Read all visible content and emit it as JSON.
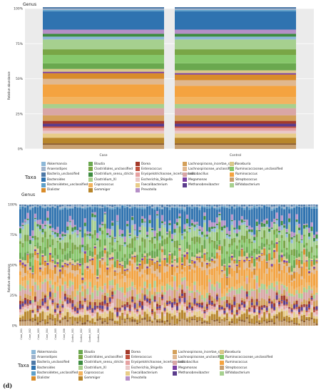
{
  "panel_label": "(d)",
  "chart_data": [
    {
      "type": "bar",
      "stacked": true,
      "title": "Genus",
      "ylabel": "Relative abundance",
      "xlabel": "",
      "ylim": [
        0,
        100
      ],
      "yticks": [
        "0%",
        "25%",
        "50%",
        "75%",
        "100%"
      ],
      "categories": [
        "Case",
        "Control"
      ],
      "series": [
        {
          "name": "Streptococcus",
          "values": [
            3,
            3
          ]
        },
        {
          "name": "Eggerthella",
          "values": [
            1,
            1
          ]
        },
        {
          "name": "Gemmiger",
          "values": [
            4,
            4
          ]
        },
        {
          "name": "Faecalibacterium",
          "values": [
            3,
            3
          ]
        },
        {
          "name": "Escherichia_Shigella",
          "values": [
            2,
            2
          ]
        },
        {
          "name": "Erysipelotrichaceae_incertae_sedis",
          "values": [
            2,
            2
          ]
        },
        {
          "name": "Enterococcus",
          "values": [
            1,
            1
          ]
        },
        {
          "name": "Methanobrevibacter",
          "values": [
            2,
            2
          ]
        },
        {
          "name": "Dorea",
          "values": [
            2,
            2
          ]
        },
        {
          "name": "Lachnospiracea_incertae_sedis",
          "values": [
            4,
            4
          ]
        },
        {
          "name": "Lactobacillus",
          "values": [
            5,
            5
          ]
        },
        {
          "name": "Clostridium_XI",
          "values": [
            3,
            3
          ]
        },
        {
          "name": "Coprococcus",
          "values": [
            5,
            5
          ]
        },
        {
          "name": "Ruminococcus",
          "values": [
            9,
            8
          ]
        },
        {
          "name": "Lachnospiraceae_unclassified",
          "values": [
            4,
            4
          ]
        },
        {
          "name": "Dialister",
          "values": [
            4,
            4
          ]
        },
        {
          "name": "Megamonas",
          "values": [
            1,
            1
          ]
        },
        {
          "name": "Roseburia",
          "values": [
            2,
            2
          ]
        },
        {
          "name": "Blautia",
          "values": [
            4,
            5
          ]
        },
        {
          "name": "Ruminococcaceae_unclassified",
          "values": [
            6,
            6
          ]
        },
        {
          "name": "Clostridiales_unclassified",
          "values": [
            4,
            4
          ]
        },
        {
          "name": "Bifidobacterium",
          "values": [
            7,
            7
          ]
        },
        {
          "name": "Akkermansia",
          "values": [
            2,
            2
          ]
        },
        {
          "name": "Clostridium_sensu_stricto",
          "values": [
            2,
            2
          ]
        },
        {
          "name": "Prevotella",
          "values": [
            3,
            3
          ]
        },
        {
          "name": "Bacteroides",
          "values": [
            13,
            13
          ]
        },
        {
          "name": "Bacteroidetes_unclassified",
          "values": [
            1,
            1
          ]
        },
        {
          "name": "Anaerostipes",
          "values": [
            1,
            1
          ]
        },
        {
          "name": "Bacteria_unclassified",
          "values": [
            1,
            1
          ]
        }
      ]
    },
    {
      "type": "bar",
      "stacked": true,
      "title": "Genus",
      "ylabel": "Relative abundance",
      "xlabel": "",
      "ylim": [
        0,
        100
      ],
      "yticks": [
        "0%",
        "25%",
        "50%",
        "75%",
        "100%"
      ],
      "note_on_samples": "per-sample stacked bars, approximately 120 samples (Case and Control)",
      "category_labels_sample": [
        "Case_001",
        "Case_002",
        "Case_003",
        "Case_004",
        "Case_005",
        "Case_006",
        "Control_001",
        "Control_002",
        "Control_003",
        "Control_004"
      ]
    }
  ],
  "legend": {
    "title": "Taxa",
    "items": [
      {
        "name": "Akkermansia",
        "color": "#8db8d8"
      },
      {
        "name": "Blautia",
        "color": "#6aa84f"
      },
      {
        "name": "Dorea",
        "color": "#a33a2a"
      },
      {
        "name": "Lachnospiracea_incertae_sedis",
        "color": "#d4a05a"
      },
      {
        "name": "Roseburia",
        "color": "#d9c98a"
      },
      {
        "name": "Anaerostipes",
        "color": "#9fb3cc"
      },
      {
        "name": "Clostridiales_unclassified",
        "color": "#79a646"
      },
      {
        "name": "Enterococcus",
        "color": "#c0523e"
      },
      {
        "name": "Lachnospiraceae_unclassified",
        "color": "#e0b890"
      },
      {
        "name": "Ruminococcaceae_unclassified",
        "color": "#86c76a"
      },
      {
        "name": "Bacteria_unclassified",
        "color": "#4e79a7"
      },
      {
        "name": "Clostridium_sensu_stricto",
        "color": "#3d8c40"
      },
      {
        "name": "Erysipelotrichaceae_incertae_sedis",
        "color": "#e6a1a1"
      },
      {
        "name": "Lactobacillus",
        "color": "#d9a6a6"
      },
      {
        "name": "Ruminococcus",
        "color": "#f4a340"
      },
      {
        "name": "Bacteroides",
        "color": "#2f73b0"
      },
      {
        "name": "Clostridium_XI",
        "color": "#a9cf8c"
      },
      {
        "name": "Escherichia_Shigella",
        "color": "#e9c8c8"
      },
      {
        "name": "Megamonas",
        "color": "#7a3fa3"
      },
      {
        "name": "Streptococcus",
        "color": "#c8a070"
      },
      {
        "name": "Bacteroidetes_unclassified",
        "color": "#5fa0c9"
      },
      {
        "name": "Coprococcus",
        "color": "#f2b35f"
      },
      {
        "name": "Faecalibacterium",
        "color": "#e8cc88"
      },
      {
        "name": "Methanobrevibacter",
        "color": "#5b3c8c"
      },
      {
        "name": "Bifidobacterium",
        "color": "#a6d08f"
      },
      {
        "name": "Dialister",
        "color": "#d98c2a"
      },
      {
        "name": "Gemmiger",
        "color": "#b8862b"
      },
      {
        "name": "Prevotella",
        "color": "#b58fc7"
      }
    ]
  }
}
